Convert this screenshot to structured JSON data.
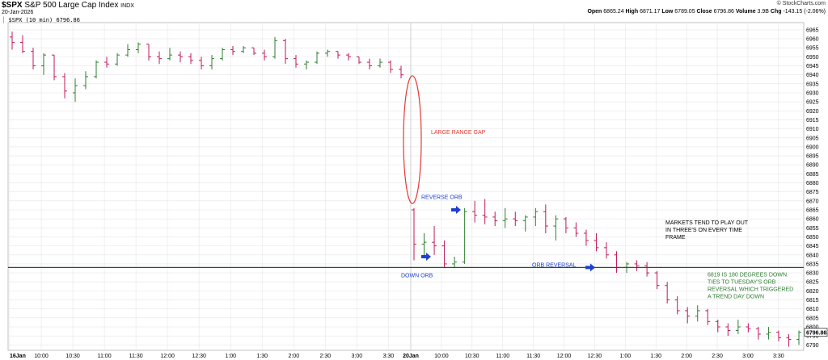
{
  "header": {
    "symbol": "$SPX",
    "name": "S&P 500 Large Cap Index",
    "exchange": "INDX",
    "date": "20-Jan-2026",
    "legend_symbol": "$SPX (10 min)",
    "legend_value": "6796.86",
    "brand": "© StockCharts.com",
    "open_label": "Open",
    "open": "6865.24",
    "high_label": "High",
    "high": "6871.17",
    "low_label": "Low",
    "low": "6789.05",
    "close_label": "Close",
    "close": "6796.86",
    "volume_label": "Volume",
    "volume": "3.9B",
    "chg_label": "Chg",
    "chg": "-143.15 (-2.06%)"
  },
  "colors": {
    "up": "#2e7d32",
    "down": "#c2185b",
    "support": "#1a5c1a",
    "gap": "#e53935",
    "arrow": "#1e3fd0",
    "note_green": "#2e7d32",
    "note_red": "#e53935",
    "note_blue": "#1e3fd0"
  },
  "chart_data": {
    "type": "ohlc",
    "title": "$SPX S&P 500 Large Cap Index INDX",
    "ylim": [
      6787,
      6969
    ],
    "yticks": [
      6790,
      6795,
      6800,
      6805,
      6810,
      6815,
      6820,
      6825,
      6830,
      6835,
      6840,
      6845,
      6850,
      6855,
      6860,
      6865,
      6870,
      6875,
      6880,
      6885,
      6890,
      6895,
      6900,
      6905,
      6910,
      6915,
      6920,
      6925,
      6930,
      6935,
      6940,
      6945,
      6950,
      6955,
      6960,
      6965
    ],
    "xtick_labels": [
      "16Jan",
      "10:00",
      "10:30",
      "11:00",
      "11:30",
      "12:00",
      "12:30",
      "1:00",
      "1:30",
      "2:00",
      "2:30",
      "3:00",
      "3:30",
      "20Jan",
      "10:00",
      "10:30",
      "11:00",
      "11:30",
      "12:00",
      "12:30",
      "1:00",
      "1:30",
      "2:00",
      "2:30",
      "3:00",
      "3:30"
    ],
    "session1": [
      {
        "o": 6961,
        "h": 6964,
        "l": 6954,
        "c": 6958
      },
      {
        "o": 6958,
        "h": 6962,
        "l": 6952,
        "c": 6953
      },
      {
        "o": 6953,
        "h": 6955,
        "l": 6943,
        "c": 6945
      },
      {
        "o": 6945,
        "h": 6952,
        "l": 6940,
        "c": 6951
      },
      {
        "o": 6951,
        "h": 6951,
        "l": 6937,
        "c": 6939
      },
      {
        "o": 6939,
        "h": 6941,
        "l": 6927,
        "c": 6931
      },
      {
        "o": 6930,
        "h": 6938,
        "l": 6925,
        "c": 6934
      },
      {
        "o": 6934,
        "h": 6942,
        "l": 6932,
        "c": 6939
      },
      {
        "o": 6939,
        "h": 6948,
        "l": 6938,
        "c": 6947
      },
      {
        "o": 6947,
        "h": 6950,
        "l": 6944,
        "c": 6946
      },
      {
        "o": 6946,
        "h": 6952,
        "l": 6945,
        "c": 6951
      },
      {
        "o": 6951,
        "h": 6957,
        "l": 6950,
        "c": 6954
      },
      {
        "o": 6954,
        "h": 6958,
        "l": 6952,
        "c": 6957
      },
      {
        "o": 6957,
        "h": 6957,
        "l": 6948,
        "c": 6950
      },
      {
        "o": 6950,
        "h": 6953,
        "l": 6946,
        "c": 6949
      },
      {
        "o": 6949,
        "h": 6955,
        "l": 6948,
        "c": 6951
      },
      {
        "o": 6951,
        "h": 6953,
        "l": 6947,
        "c": 6950
      },
      {
        "o": 6950,
        "h": 6952,
        "l": 6946,
        "c": 6948
      },
      {
        "o": 6948,
        "h": 6950,
        "l": 6943,
        "c": 6945
      },
      {
        "o": 6945,
        "h": 6951,
        "l": 6943,
        "c": 6949
      },
      {
        "o": 6949,
        "h": 6955,
        "l": 6948,
        "c": 6954
      },
      {
        "o": 6954,
        "h": 6956,
        "l": 6951,
        "c": 6953
      },
      {
        "o": 6953,
        "h": 6956,
        "l": 6952,
        "c": 6955
      },
      {
        "o": 6955,
        "h": 6955,
        "l": 6951,
        "c": 6952
      },
      {
        "o": 6952,
        "h": 6954,
        "l": 6948,
        "c": 6950
      },
      {
        "o": 6950,
        "h": 6961,
        "l": 6949,
        "c": 6959
      },
      {
        "o": 6959,
        "h": 6960,
        "l": 6946,
        "c": 6949
      },
      {
        "o": 6949,
        "h": 6951,
        "l": 6944,
        "c": 6946
      },
      {
        "o": 6946,
        "h": 6948,
        "l": 6943,
        "c": 6947
      },
      {
        "o": 6947,
        "h": 6953,
        "l": 6946,
        "c": 6952
      },
      {
        "o": 6952,
        "h": 6954,
        "l": 6950,
        "c": 6953
      },
      {
        "o": 6953,
        "h": 6953,
        "l": 6949,
        "c": 6951
      },
      {
        "o": 6951,
        "h": 6952,
        "l": 6948,
        "c": 6950
      },
      {
        "o": 6950,
        "h": 6950,
        "l": 6946,
        "c": 6947
      },
      {
        "o": 6947,
        "h": 6949,
        "l": 6943,
        "c": 6945
      },
      {
        "o": 6945,
        "h": 6949,
        "l": 6944,
        "c": 6947
      },
      {
        "o": 6947,
        "h": 6948,
        "l": 6941,
        "c": 6943
      },
      {
        "o": 6943,
        "h": 6945,
        "l": 6938,
        "c": 6940
      }
    ],
    "session2": [
      {
        "o": 6865,
        "h": 6866,
        "l": 6837,
        "c": 6846
      },
      {
        "o": 6846,
        "h": 6852,
        "l": 6838,
        "c": 6847
      },
      {
        "o": 6847,
        "h": 6856,
        "l": 6840,
        "c": 6845
      },
      {
        "o": 6845,
        "h": 6848,
        "l": 6833,
        "c": 6835
      },
      {
        "o": 6835,
        "h": 6839,
        "l": 6833,
        "c": 6836
      },
      {
        "o": 6836,
        "h": 6866,
        "l": 6835,
        "c": 6864
      },
      {
        "o": 6864,
        "h": 6870,
        "l": 6858,
        "c": 6862
      },
      {
        "o": 6862,
        "h": 6871,
        "l": 6857,
        "c": 6861
      },
      {
        "o": 6861,
        "h": 6864,
        "l": 6856,
        "c": 6859
      },
      {
        "o": 6859,
        "h": 6866,
        "l": 6855,
        "c": 6860
      },
      {
        "o": 6860,
        "h": 6864,
        "l": 6856,
        "c": 6859
      },
      {
        "o": 6859,
        "h": 6862,
        "l": 6853,
        "c": 6861
      },
      {
        "o": 6861,
        "h": 6866,
        "l": 6856,
        "c": 6864
      },
      {
        "o": 6864,
        "h": 6868,
        "l": 6852,
        "c": 6856
      },
      {
        "o": 6856,
        "h": 6862,
        "l": 6848,
        "c": 6860
      },
      {
        "o": 6860,
        "h": 6861,
        "l": 6852,
        "c": 6855
      },
      {
        "o": 6855,
        "h": 6858,
        "l": 6850,
        "c": 6852
      },
      {
        "o": 6852,
        "h": 6854,
        "l": 6845,
        "c": 6848
      },
      {
        "o": 6848,
        "h": 6852,
        "l": 6842,
        "c": 6844
      },
      {
        "o": 6844,
        "h": 6847,
        "l": 6838,
        "c": 6840
      },
      {
        "o": 6840,
        "h": 6842,
        "l": 6830,
        "c": 6833
      },
      {
        "o": 6833,
        "h": 6836,
        "l": 6830,
        "c": 6835
      },
      {
        "o": 6835,
        "h": 6837,
        "l": 6831,
        "c": 6834
      },
      {
        "o": 6834,
        "h": 6836,
        "l": 6828,
        "c": 6830
      },
      {
        "o": 6830,
        "h": 6831,
        "l": 6821,
        "c": 6823
      },
      {
        "o": 6823,
        "h": 6825,
        "l": 6813,
        "c": 6815
      },
      {
        "o": 6815,
        "h": 6817,
        "l": 6807,
        "c": 6809
      },
      {
        "o": 6809,
        "h": 6811,
        "l": 6802,
        "c": 6806
      },
      {
        "o": 6806,
        "h": 6812,
        "l": 6803,
        "c": 6809
      },
      {
        "o": 6809,
        "h": 6810,
        "l": 6801,
        "c": 6803
      },
      {
        "o": 6803,
        "h": 6804,
        "l": 6797,
        "c": 6800
      },
      {
        "o": 6800,
        "h": 6802,
        "l": 6795,
        "c": 6798
      },
      {
        "o": 6798,
        "h": 6804,
        "l": 6796,
        "c": 6800
      },
      {
        "o": 6800,
        "h": 6802,
        "l": 6797,
        "c": 6799
      },
      {
        "o": 6799,
        "h": 6800,
        "l": 6793,
        "c": 6796
      },
      {
        "o": 6796,
        "h": 6800,
        "l": 6793,
        "c": 6797
      },
      {
        "o": 6797,
        "h": 6798,
        "l": 6792,
        "c": 6794
      },
      {
        "o": 6794,
        "h": 6796,
        "l": 6789,
        "c": 6793
      },
      {
        "o": 6793,
        "h": 6798,
        "l": 6790,
        "c": 6797
      }
    ],
    "support_level": 6833,
    "last_price_label": "6796.86",
    "annotations": {
      "gap_label": "LARGE RANGE GAP",
      "reverse_orb": "REVERSE ORB",
      "down_orb": "DOWN ORB",
      "orb_reversal": "ORB REVERSAL",
      "threes_note": [
        "MARKETS TEND TO PLAY OUT",
        "IN THREE'S ON EVERY TIME",
        "FRAME"
      ],
      "degrees_note": [
        "6819 IS 180 DEGREES DOWN",
        "TIES TO TUESDAY'S ORB",
        "REVERSAL WHICH TRIGGERED",
        "A TREND DAY DOWN"
      ]
    }
  }
}
